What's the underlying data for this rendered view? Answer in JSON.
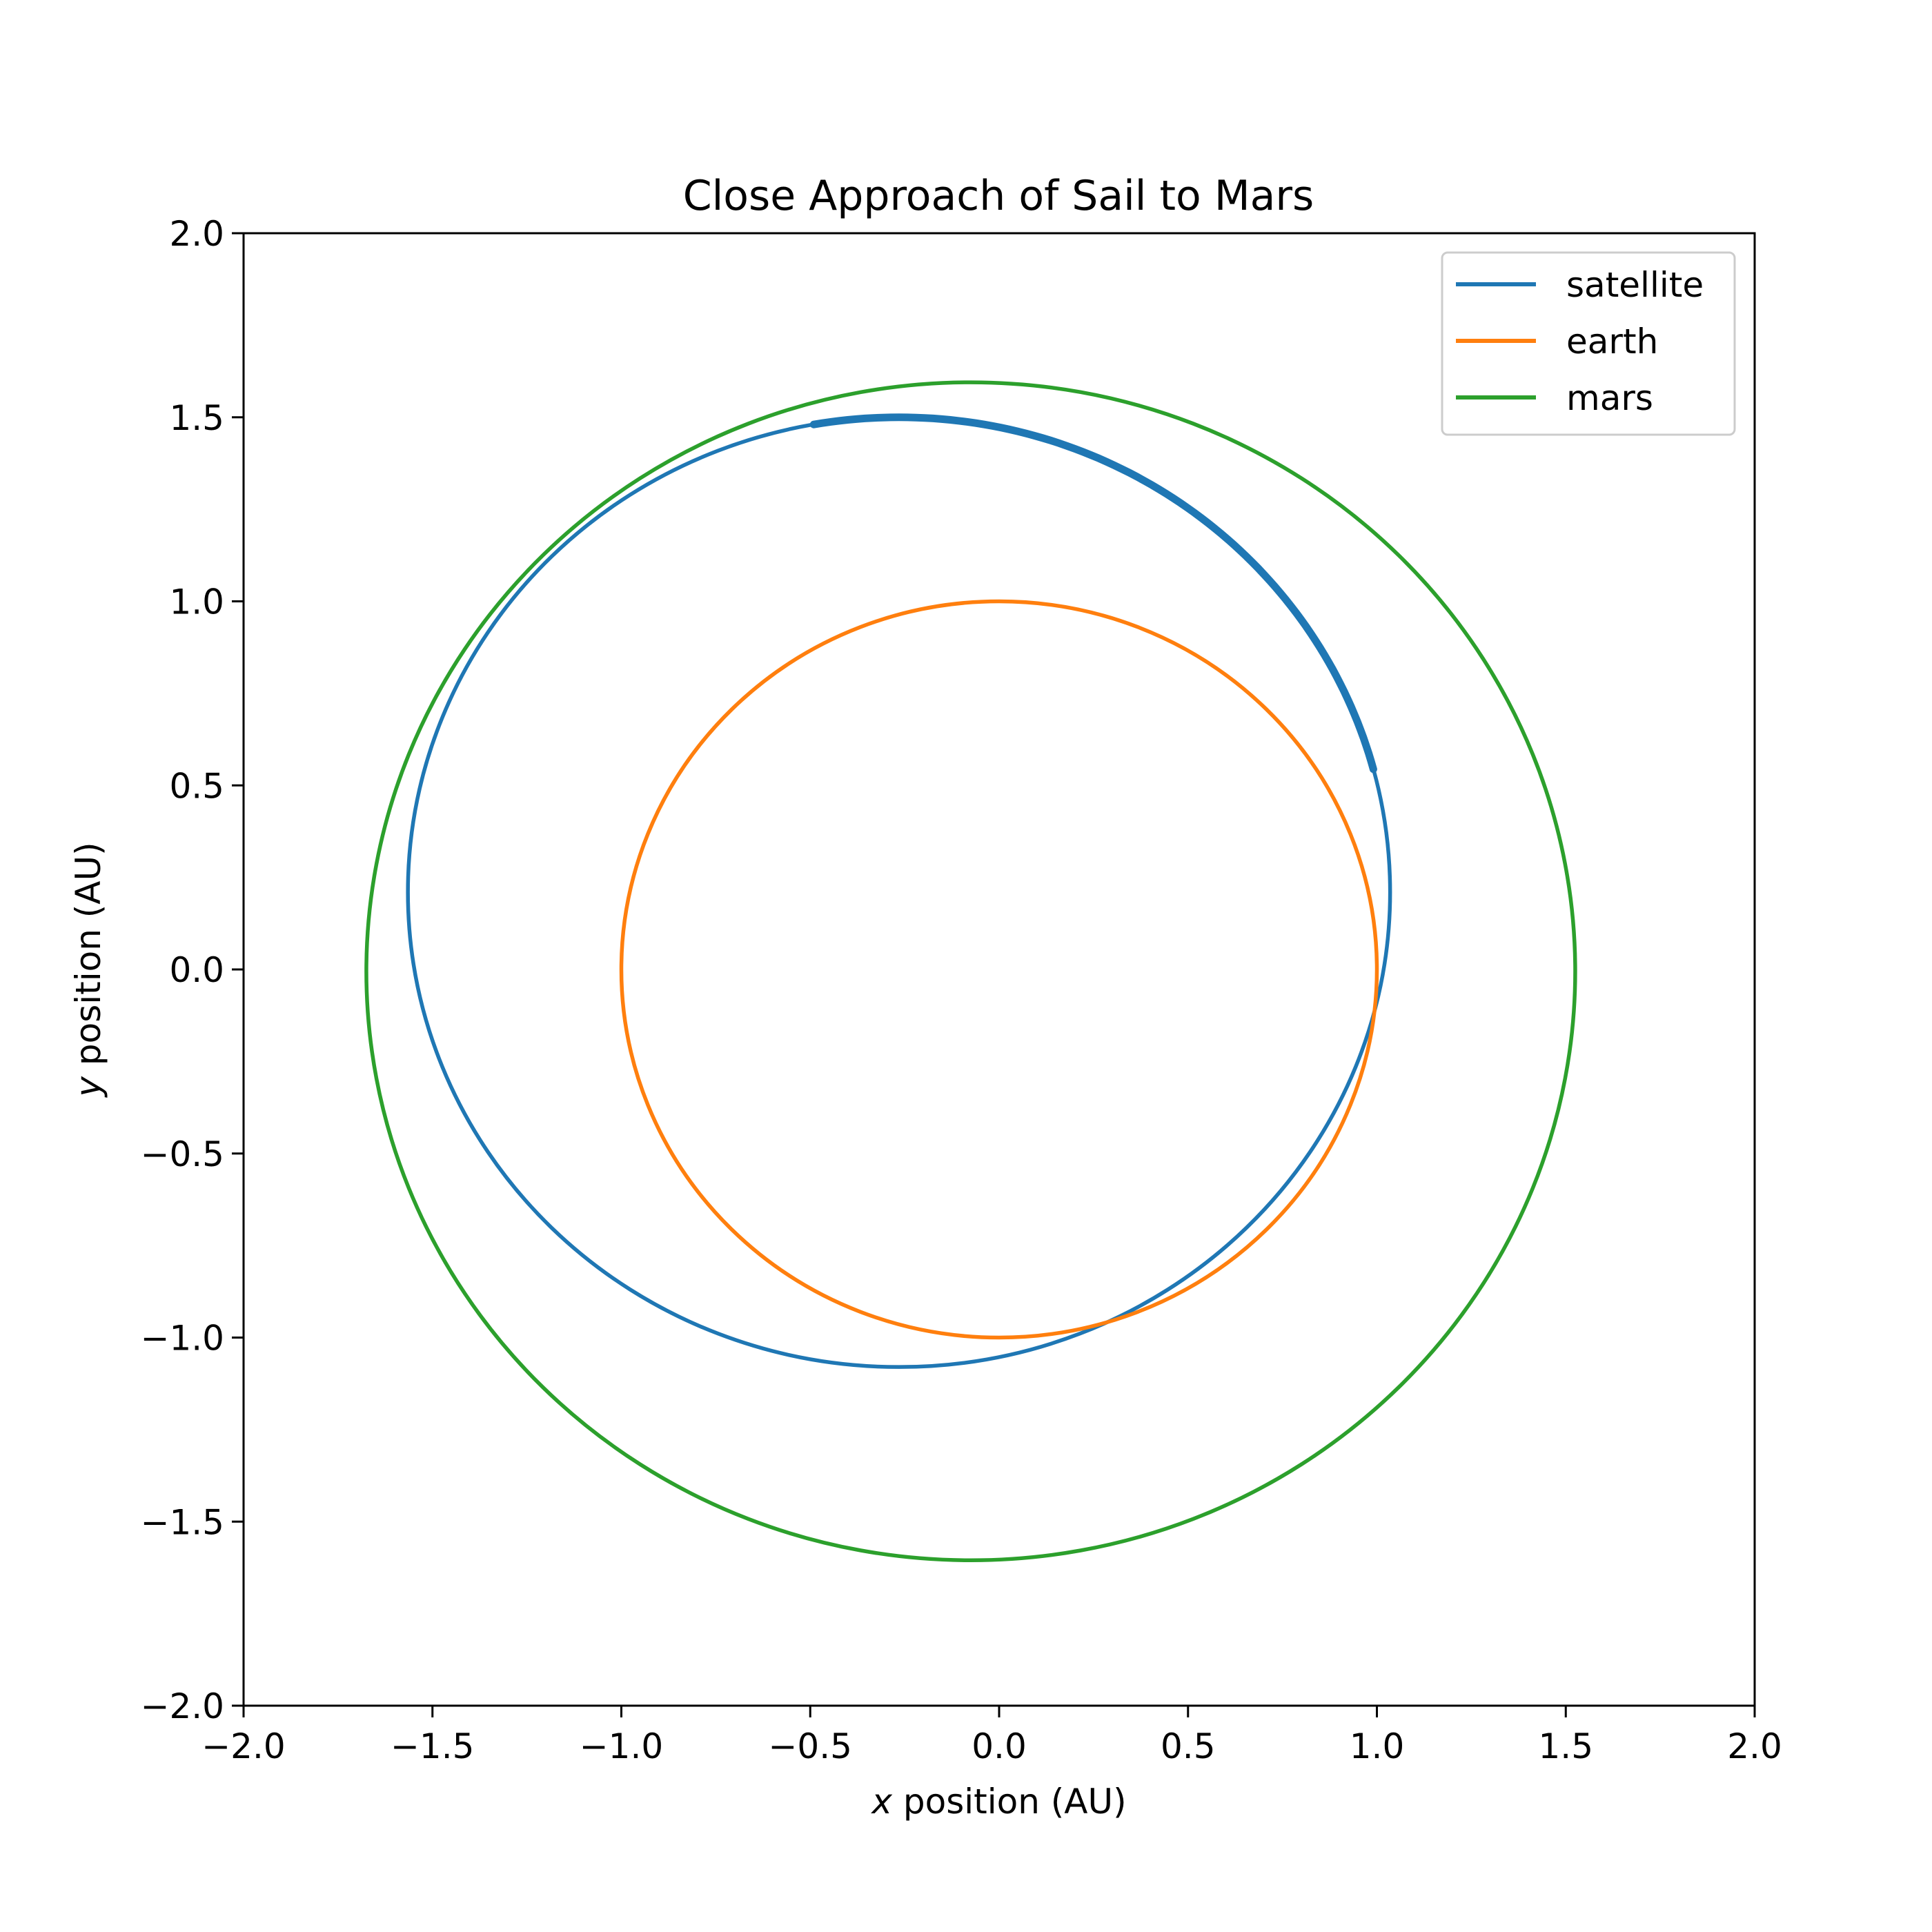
{
  "chart_data": {
    "type": "line",
    "title": "Close Approach of Sail to Mars",
    "xlabel": {
      "var": "x",
      "rest": " position (AU)"
    },
    "ylabel": {
      "var": "y",
      "rest": " position (AU)"
    },
    "xlim": [
      -2.0,
      2.0
    ],
    "ylim": [
      -2.0,
      2.0
    ],
    "xticks": [
      -2.0,
      -1.5,
      -1.0,
      -0.5,
      0.0,
      0.5,
      1.0,
      1.5,
      2.0
    ],
    "yticks": [
      -2.0,
      -1.5,
      -1.0,
      -0.5,
      0.0,
      0.5,
      1.0,
      1.5,
      2.0
    ],
    "xtick_labels": [
      "−2.0",
      "−1.5",
      "−1.0",
      "−0.5",
      "0.0",
      "0.5",
      "1.0",
      "1.5",
      "2.0"
    ],
    "ytick_labels": [
      "−2.0",
      "−1.5",
      "−1.0",
      "−0.5",
      "0.0",
      "0.5",
      "1.0",
      "1.5",
      "2.0"
    ],
    "grid": false,
    "legend_position": "top-right",
    "series": [
      {
        "name": "satellite",
        "color": "#1f77b4",
        "shape": "ellipse",
        "center": [
          -0.265,
          0.21
        ],
        "radii": [
          1.3,
          1.29
        ],
        "thick_arc": {
          "from_deg": 15,
          "to_deg": 100
        }
      },
      {
        "name": "earth",
        "color": "#ff7f0e",
        "shape": "ellipse",
        "center": [
          0.0,
          0.0
        ],
        "radii": [
          1.0,
          1.0
        ]
      },
      {
        "name": "mars",
        "color": "#2ca02c",
        "shape": "ellipse",
        "center": [
          -0.075,
          -0.005
        ],
        "radii": [
          1.6,
          1.6
        ]
      }
    ]
  }
}
